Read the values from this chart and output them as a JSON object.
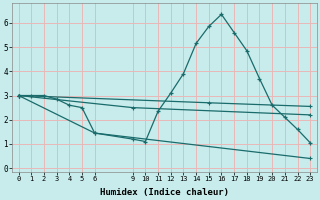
{
  "xlabel": "Humidex (Indice chaleur)",
  "ylabel": "",
  "background_color": "#c8ecec",
  "grid_color": "#e8b8b8",
  "line_color": "#1a6b6b",
  "xlim": [
    -0.5,
    23.5
  ],
  "ylim": [
    -0.15,
    6.8
  ],
  "xtick_positions": [
    0,
    1,
    2,
    3,
    4,
    5,
    6,
    9,
    10,
    11,
    12,
    13,
    14,
    15,
    16,
    17,
    18,
    19,
    20,
    21,
    22,
    23
  ],
  "xtick_labels": [
    "0",
    "1",
    "2",
    "3",
    "4",
    "5",
    "6",
    "9",
    "10",
    "11",
    "12",
    "13",
    "14",
    "15",
    "16",
    "17",
    "18",
    "19",
    "20",
    "21",
    "22",
    "23"
  ],
  "yticks": [
    0,
    1,
    2,
    3,
    4,
    5,
    6
  ],
  "main_line": {
    "x": [
      0,
      1,
      2,
      3,
      4,
      5,
      6,
      9,
      10,
      11,
      12,
      13,
      14,
      15,
      16,
      17,
      18,
      19,
      20,
      21,
      22,
      23
    ],
    "y": [
      3.0,
      3.0,
      3.0,
      2.85,
      2.6,
      2.5,
      1.45,
      1.2,
      1.1,
      2.35,
      3.1,
      3.9,
      5.15,
      5.85,
      6.35,
      5.6,
      4.85,
      3.7,
      2.6,
      2.1,
      1.6,
      1.05
    ]
  },
  "straight_lines": [
    {
      "x": [
        0,
        6,
        23
      ],
      "y": [
        3.0,
        1.45,
        0.4
      ]
    },
    {
      "x": [
        0,
        9,
        23
      ],
      "y": [
        3.0,
        2.5,
        2.2
      ]
    },
    {
      "x": [
        0,
        15,
        23
      ],
      "y": [
        3.0,
        2.7,
        2.55
      ]
    }
  ]
}
